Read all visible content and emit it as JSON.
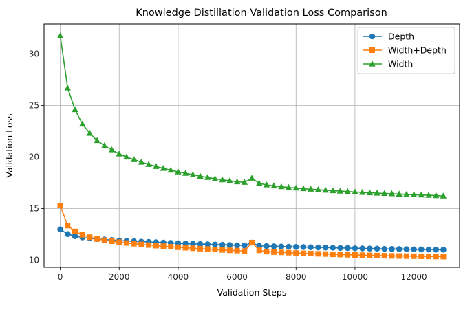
{
  "chart_data": {
    "type": "line",
    "title": "Knowledge Distillation Validation Loss Comparison",
    "xlabel": "Validation Steps",
    "ylabel": "Validation Loss",
    "xlim": [
      -550,
      13550
    ],
    "ylim": [
      9.3,
      32.9
    ],
    "xticks": [
      0,
      2000,
      4000,
      6000,
      8000,
      10000,
      12000
    ],
    "yticks": [
      10,
      15,
      20,
      25,
      30
    ],
    "grid": true,
    "legend_position": "top-right",
    "x": [
      0,
      250,
      500,
      750,
      1000,
      1250,
      1500,
      1750,
      2000,
      2250,
      2500,
      2750,
      3000,
      3250,
      3500,
      3750,
      4000,
      4250,
      4500,
      4750,
      5000,
      5250,
      5500,
      5750,
      6000,
      6250,
      6500,
      6750,
      7000,
      7250,
      7500,
      7750,
      8000,
      8250,
      8500,
      8750,
      9000,
      9250,
      9500,
      9750,
      10000,
      10250,
      10500,
      10750,
      11000,
      11250,
      11500,
      11750,
      12000,
      12250,
      12500,
      12750,
      13000
    ],
    "series": [
      {
        "name": "Depth",
        "color": "#1f77b4",
        "marker": "circle",
        "values": [
          12.98,
          12.52,
          12.32,
          12.2,
          12.12,
          12.05,
          12.0,
          11.95,
          11.9,
          11.86,
          11.82,
          11.79,
          11.76,
          11.73,
          11.7,
          11.67,
          11.64,
          11.61,
          11.59,
          11.56,
          11.54,
          11.51,
          11.49,
          11.46,
          11.44,
          11.42,
          11.7,
          11.38,
          11.36,
          11.34,
          11.32,
          11.3,
          11.28,
          11.27,
          11.25,
          11.23,
          11.22,
          11.2,
          11.18,
          11.17,
          11.15,
          11.14,
          11.12,
          11.11,
          11.09,
          11.08,
          11.07,
          11.06,
          11.05,
          11.04,
          11.03,
          11.02,
          11.01
        ]
      },
      {
        "name": "Width+Depth",
        "color": "#ff7f0e",
        "marker": "square",
        "values": [
          15.3,
          13.35,
          12.78,
          12.45,
          12.22,
          12.05,
          11.93,
          11.83,
          11.74,
          11.66,
          11.59,
          11.53,
          11.46,
          11.4,
          11.35,
          11.3,
          11.25,
          11.2,
          11.15,
          11.11,
          11.07,
          11.03,
          10.99,
          10.95,
          10.92,
          10.88,
          11.7,
          10.95,
          10.82,
          10.78,
          10.75,
          10.72,
          10.69,
          10.66,
          10.64,
          10.61,
          10.59,
          10.56,
          10.54,
          10.52,
          10.5,
          10.48,
          10.46,
          10.44,
          10.43,
          10.41,
          10.4,
          10.39,
          10.38,
          10.37,
          10.36,
          10.35,
          10.34
        ]
      },
      {
        "name": "Width",
        "color": "#2ca02c",
        "marker": "triangle",
        "values": [
          31.75,
          26.7,
          24.6,
          23.2,
          22.3,
          21.6,
          21.1,
          20.7,
          20.3,
          20.0,
          19.75,
          19.5,
          19.28,
          19.08,
          18.9,
          18.72,
          18.56,
          18.42,
          18.28,
          18.14,
          18.02,
          17.9,
          17.79,
          17.69,
          17.6,
          17.55,
          17.95,
          17.45,
          17.3,
          17.2,
          17.12,
          17.05,
          16.99,
          16.93,
          16.88,
          16.83,
          16.78,
          16.73,
          16.69,
          16.65,
          16.61,
          16.57,
          16.53,
          16.5,
          16.47,
          16.44,
          16.41,
          16.38,
          16.35,
          16.32,
          16.29,
          16.26,
          16.22
        ]
      }
    ]
  }
}
